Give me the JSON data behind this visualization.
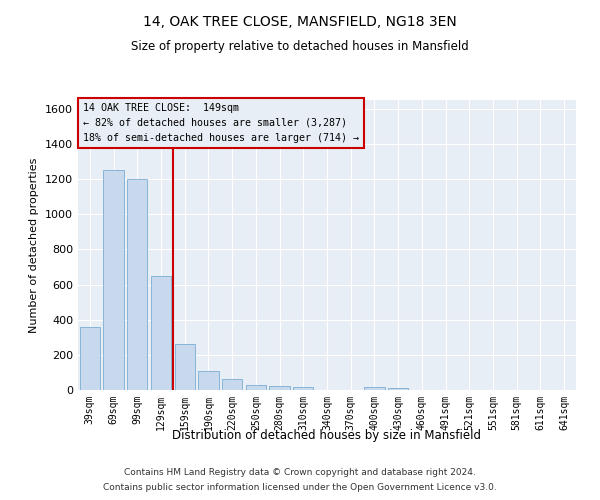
{
  "title1": "14, OAK TREE CLOSE, MANSFIELD, NG18 3EN",
  "title2": "Size of property relative to detached houses in Mansfield",
  "xlabel": "Distribution of detached houses by size in Mansfield",
  "ylabel": "Number of detached properties",
  "bar_color": "#c8d8ed",
  "bar_edge_color": "#7aadd4",
  "categories": [
    "39sqm",
    "69sqm",
    "99sqm",
    "129sqm",
    "159sqm",
    "190sqm",
    "220sqm",
    "250sqm",
    "280sqm",
    "310sqm",
    "340sqm",
    "370sqm",
    "400sqm",
    "430sqm",
    "460sqm",
    "491sqm",
    "521sqm",
    "551sqm",
    "581sqm",
    "611sqm",
    "641sqm"
  ],
  "values": [
    360,
    1250,
    1200,
    650,
    260,
    110,
    65,
    30,
    20,
    15,
    0,
    0,
    15,
    10,
    0,
    0,
    0,
    0,
    0,
    0,
    0
  ],
  "ylim": [
    0,
    1650
  ],
  "yticks": [
    0,
    200,
    400,
    600,
    800,
    1000,
    1200,
    1400,
    1600
  ],
  "property_line_x": 3.5,
  "property_label": "14 OAK TREE CLOSE:  149sqm",
  "annotation_line1": "← 82% of detached houses are smaller (3,287)",
  "annotation_line2": "18% of semi-detached houses are larger (714) →",
  "vline_color": "#cc0000",
  "box_edge_color": "#cc0000",
  "footer1": "Contains HM Land Registry data © Crown copyright and database right 2024.",
  "footer2": "Contains public sector information licensed under the Open Government Licence v3.0.",
  "background_color": "#e8eef5",
  "plot_bg_color": "#e8eef5",
  "grid_color": "#ffffff"
}
